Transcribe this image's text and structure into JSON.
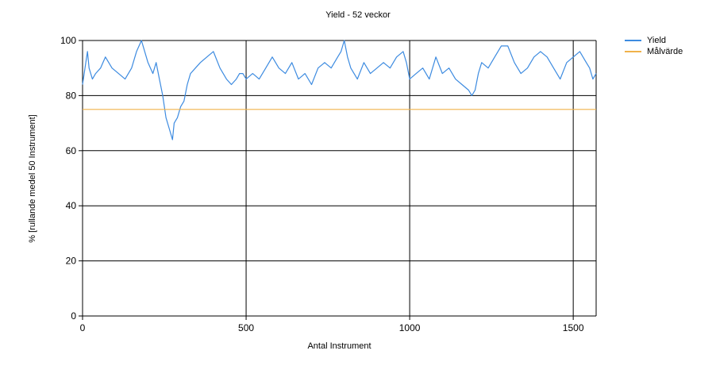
{
  "chart_data": {
    "type": "line",
    "title": "Yield - 52 veckor",
    "xlabel": "Antal Instrument",
    "ylabel": "% [rullande medel 50 Instrument]",
    "xlim": [
      0,
      1570
    ],
    "ylim": [
      0,
      100
    ],
    "xticks": [
      0,
      500,
      1000,
      1500
    ],
    "yticks": [
      0,
      20,
      40,
      60,
      80,
      100
    ],
    "grid": true,
    "legend_position": "top-right",
    "series": [
      {
        "name": "Yield",
        "color": "#3d8be0",
        "x": [
          0,
          10,
          15,
          20,
          30,
          40,
          55,
          70,
          90,
          110,
          130,
          150,
          165,
          180,
          190,
          200,
          215,
          225,
          235,
          245,
          255,
          265,
          275,
          280,
          290,
          300,
          310,
          320,
          330,
          345,
          360,
          380,
          400,
          420,
          440,
          455,
          470,
          480,
          490,
          500,
          520,
          540,
          560,
          580,
          600,
          620,
          640,
          660,
          680,
          700,
          720,
          740,
          760,
          780,
          790,
          800,
          810,
          820,
          840,
          860,
          880,
          900,
          920,
          940,
          960,
          980,
          990,
          1000,
          1020,
          1040,
          1060,
          1080,
          1100,
          1120,
          1140,
          1160,
          1180,
          1190,
          1200,
          1210,
          1220,
          1240,
          1260,
          1280,
          1300,
          1320,
          1340,
          1360,
          1380,
          1400,
          1420,
          1440,
          1460,
          1480,
          1500,
          1520,
          1540,
          1550,
          1560,
          1570
        ],
        "values": [
          84,
          92,
          96,
          90,
          86,
          88,
          90,
          94,
          90,
          88,
          86,
          90,
          96,
          100,
          96,
          92,
          88,
          92,
          86,
          80,
          72,
          68,
          64,
          70,
          72,
          76,
          78,
          84,
          88,
          90,
          92,
          94,
          96,
          90,
          86,
          84,
          86,
          88,
          88,
          86,
          88,
          86,
          90,
          94,
          90,
          88,
          92,
          86,
          88,
          84,
          90,
          92,
          90,
          94,
          96,
          100,
          94,
          90,
          86,
          92,
          88,
          90,
          92,
          90,
          94,
          96,
          92,
          86,
          88,
          90,
          86,
          94,
          88,
          90,
          86,
          84,
          82,
          80,
          82,
          88,
          92,
          90,
          94,
          98,
          98,
          92,
          88,
          90,
          94,
          96,
          94,
          90,
          86,
          92,
          94,
          96,
          92,
          90,
          86,
          88
        ]
      },
      {
        "name": "Målvärde",
        "color": "#f0b24a",
        "x": [
          0,
          1570
        ],
        "values": [
          75,
          75
        ]
      }
    ]
  }
}
